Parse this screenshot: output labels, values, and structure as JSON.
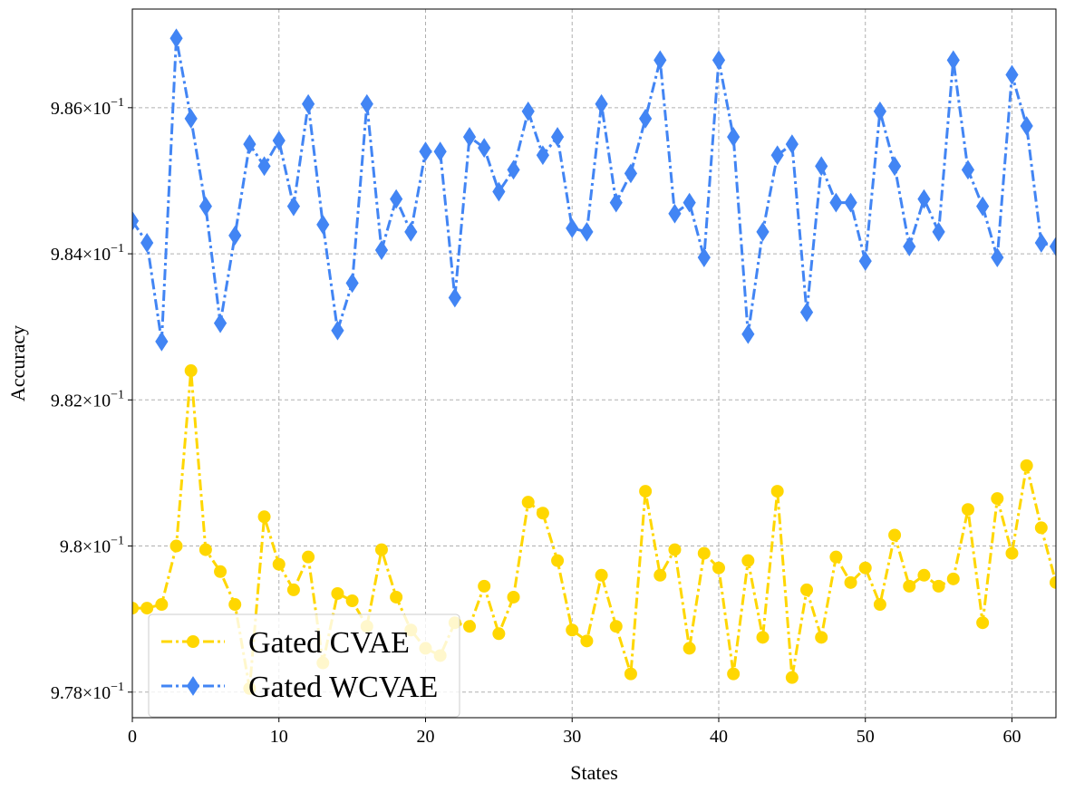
{
  "chart_data": {
    "type": "line",
    "xlabel": "States",
    "ylabel": "Accuracy",
    "xlim": [
      0,
      63
    ],
    "ylim": [
      0.97765,
      0.98735
    ],
    "xticks": [
      0,
      10,
      20,
      30,
      40,
      50,
      60
    ],
    "yticks": [
      {
        "value": 0.978,
        "mantissa": "9.78",
        "base": "10",
        "exp": "−1"
      },
      {
        "value": 0.98,
        "mantissa": "9.8",
        "base": "10",
        "exp": "−1"
      },
      {
        "value": 0.982,
        "mantissa": "9.82",
        "base": "10",
        "exp": "−1"
      },
      {
        "value": 0.984,
        "mantissa": "9.84",
        "base": "10",
        "exp": "−1"
      },
      {
        "value": 0.986,
        "mantissa": "9.86",
        "base": "10",
        "exp": "−1"
      }
    ],
    "grid": true,
    "legend_position": "lower-left",
    "series": [
      {
        "name": "Gated CVAE",
        "color": "#FFD700",
        "marker": "circle",
        "line_style": "dash-dot",
        "values": [
          0.97915,
          0.97915,
          0.9792,
          0.98,
          0.9824,
          0.97995,
          0.97965,
          0.9792,
          0.97805,
          0.9804,
          0.97975,
          0.9794,
          0.97985,
          0.9784,
          0.97935,
          0.97925,
          0.9789,
          0.97995,
          0.9793,
          0.97885,
          0.9786,
          0.9785,
          0.97895,
          0.9789,
          0.97945,
          0.9788,
          0.9793,
          0.9806,
          0.98045,
          0.9798,
          0.97885,
          0.9787,
          0.9796,
          0.9789,
          0.97825,
          0.98075,
          0.9796,
          0.97995,
          0.9786,
          0.9799,
          0.9797,
          0.97825,
          0.9798,
          0.97875,
          0.98075,
          0.9782,
          0.9794,
          0.97875,
          0.97985,
          0.9795,
          0.9797,
          0.9792,
          0.98015,
          0.97945,
          0.9796,
          0.97945,
          0.97955,
          0.9805,
          0.97895,
          0.98065,
          0.9799,
          0.9811,
          0.98025,
          0.9795
        ]
      },
      {
        "name": "Gated WCVAE",
        "color": "#4285F4",
        "marker": "thin_diamond",
        "line_style": "dash-dot",
        "values": [
          0.98445,
          0.98415,
          0.9828,
          0.98695,
          0.98585,
          0.98465,
          0.98305,
          0.98425,
          0.9855,
          0.9852,
          0.98555,
          0.98465,
          0.98605,
          0.9844,
          0.98295,
          0.9836,
          0.98605,
          0.98405,
          0.98475,
          0.9843,
          0.9854,
          0.9854,
          0.9834,
          0.9856,
          0.98545,
          0.98485,
          0.98515,
          0.98595,
          0.98535,
          0.9856,
          0.98435,
          0.9843,
          0.98605,
          0.9847,
          0.9851,
          0.98585,
          0.98665,
          0.98455,
          0.9847,
          0.98395,
          0.98665,
          0.9856,
          0.9829,
          0.9843,
          0.98535,
          0.9855,
          0.9832,
          0.9852,
          0.9847,
          0.9847,
          0.9839,
          0.98595,
          0.9852,
          0.9841,
          0.98475,
          0.9843,
          0.98665,
          0.98515,
          0.98465,
          0.98395,
          0.98645,
          0.98575,
          0.98415,
          0.9841
        ]
      }
    ]
  }
}
